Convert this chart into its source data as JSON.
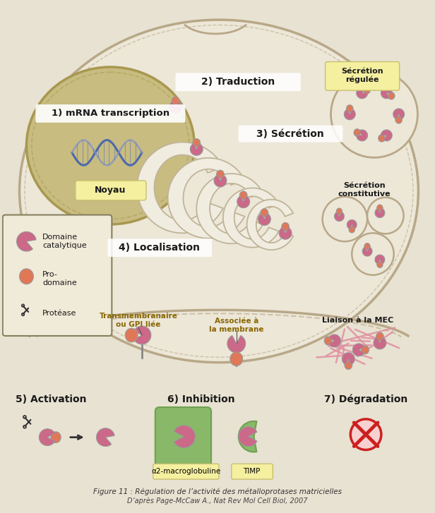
{
  "bg_color": "#e8e2d2",
  "cell_color": "#ede7d8",
  "cell_border": "#b8a888",
  "nucleus_color": "#c8bc80",
  "nucleus_border": "#a89850",
  "er_color": "#ddd8c8",
  "er_border": "#b8aa90",
  "title": "Figure 11 : Régulation de l’activité des métalloprotases matricielles",
  "subtitle": "D’après Page-McCaw A., Nat Rev Mol Cell Biol, 2007",
  "labels": {
    "step1": "1) mRNA transcription",
    "step2": "2) Traduction",
    "step3": "3) Sécrétion",
    "step4": "4) Localisation",
    "step5": "5) Activation",
    "step6": "6) Inhibition",
    "step7": "7) Dégradation",
    "noyau": "Noyau",
    "domaine": "Domaine\ncatalytique",
    "prodomaine": "Pro-\ndomaine",
    "protease": "Protéase",
    "transmembranaire": "Transmembranaire\nou GPI liée",
    "associee": "Associée à\nla membrane",
    "liaison_mec": "Liaison à la MEC",
    "secretion_regulee": "Sécrétion\nrégulée",
    "secretion_constitutive": "Sécrétion\nconstitutive",
    "alpha2": "α2-macroglobuline",
    "timp": "TIMP"
  },
  "colors": {
    "pink_domain": "#cc6888",
    "pink_domain_light": "#e090a8",
    "orange_pro": "#e07858",
    "orange_pro_light": "#e89070",
    "green_inhibitor": "#88b868",
    "green_inhibitor_dark": "#70a050",
    "red_cross": "#cc2020",
    "yellow_label": "#f5f0a0",
    "yellow_label_border": "#c8c070",
    "legend_bg": "#f0ead8",
    "legend_border": "#888060",
    "pink_mec": "#e090a0",
    "text_bold": "#1a1a1a",
    "text_label": "#886600",
    "er_fill": "#f0ece0",
    "er_stroke": "#c0b498"
  }
}
